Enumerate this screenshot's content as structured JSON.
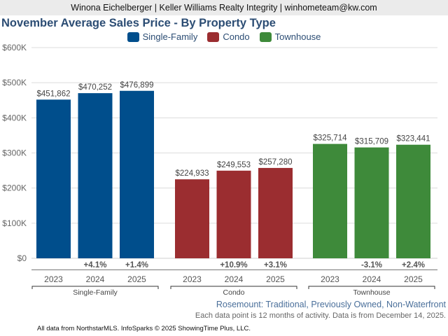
{
  "header": {
    "agent_line": "Winona Eichelberger | Keller Williams Realty Integrity | winhometeam@kw.com"
  },
  "colors": {
    "single_family": "#004e8c",
    "condo": "#9b2d30",
    "townhouse": "#3e8a3a"
  },
  "chart_data": {
    "type": "bar",
    "title": "November Average Sales Price - By Property Type",
    "xlabel": "",
    "ylabel": "",
    "ylim": [
      0,
      600000
    ],
    "yticks": [
      0,
      100000,
      200000,
      300000,
      400000,
      500000,
      600000
    ],
    "ytick_labels": [
      "$0",
      "$100K",
      "$200K",
      "$300K",
      "$400K",
      "$500K",
      "$600K"
    ],
    "grid": true,
    "legend_position": "top-center",
    "categories": [
      "2023",
      "2024",
      "2025"
    ],
    "series": [
      {
        "name": "Single-Family",
        "color_key": "single_family",
        "values": [
          451862,
          470252,
          476899
        ],
        "labels": [
          "$451,862",
          "$470,252",
          "$476,899"
        ],
        "changes": [
          "",
          "+4.1%",
          "+1.4%"
        ]
      },
      {
        "name": "Condo",
        "color_key": "condo",
        "values": [
          224933,
          249553,
          257280
        ],
        "labels": [
          "$224,933",
          "$249,553",
          "$257,280"
        ],
        "changes": [
          "",
          "+10.9%",
          "+3.1%"
        ]
      },
      {
        "name": "Townhouse",
        "color_key": "townhouse",
        "values": [
          325714,
          315709,
          323441
        ],
        "labels": [
          "$325,714",
          "$315,709",
          "$323,441"
        ],
        "changes": [
          "",
          "-3.1%",
          "+2.4%"
        ]
      }
    ]
  },
  "subtitle": "Rosemount: Traditional, Previously Owned, Non-Waterfront",
  "note": "Each data point is 12 months of activity. Data is from December 14, 2025.",
  "footer": "All data from NorthstarMLS. InfoSparks © 2025 ShowingTime Plus, LLC."
}
